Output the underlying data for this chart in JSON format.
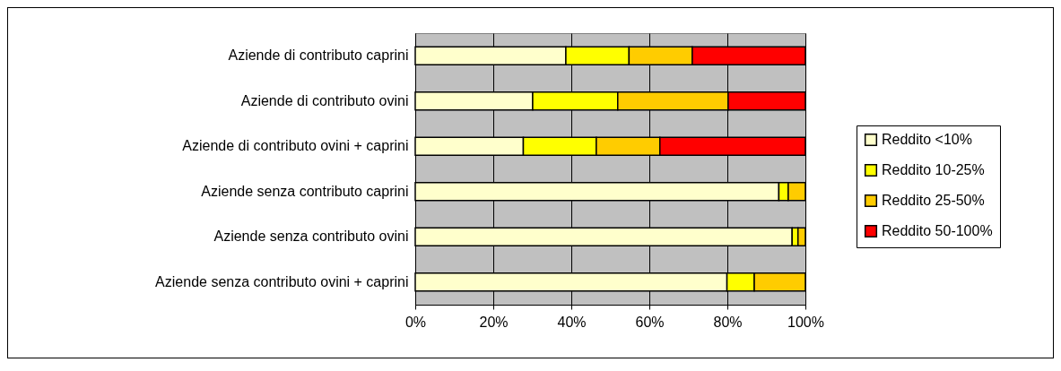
{
  "chart_data": {
    "type": "bar",
    "orientation": "horizontal",
    "stacked": true,
    "categories": [
      "Aziende di contributo caprini",
      "Aziende di contributo ovini",
      "Aziende di contributo ovini + caprini",
      "Aziende senza contributo caprini",
      "Aziende senza contributo ovini",
      "Aziende senza contributo ovini + caprini"
    ],
    "series": [
      {
        "name": "Reddito <10%",
        "color": "#ffffcc",
        "values": [
          38.6,
          30.1,
          27.7,
          93.2,
          96.6,
          79.9
        ]
      },
      {
        "name": "Reddito 10-25%",
        "color": "#ffff00",
        "values": [
          16.2,
          21.8,
          18.7,
          2.4,
          1.5,
          7.0
        ]
      },
      {
        "name": "Reddito 25-50%",
        "color": "#ffcc00",
        "values": [
          16.2,
          28.3,
          16.3,
          4.4,
          1.9,
          13.1
        ]
      },
      {
        "name": "Reddito 50-100%",
        "color": "#ff0000",
        "values": [
          29.0,
          19.8,
          37.3,
          null,
          null,
          null
        ]
      }
    ],
    "xlim": [
      0,
      100
    ],
    "xticks": [
      {
        "value": 0,
        "label": "0%"
      },
      {
        "value": 20,
        "label": "20%"
      },
      {
        "value": 40,
        "label": "40%"
      },
      {
        "value": 60,
        "label": "60%"
      },
      {
        "value": 80,
        "label": "80%"
      },
      {
        "value": 100,
        "label": "100%"
      }
    ],
    "grid": "x",
    "legend": "right"
  }
}
